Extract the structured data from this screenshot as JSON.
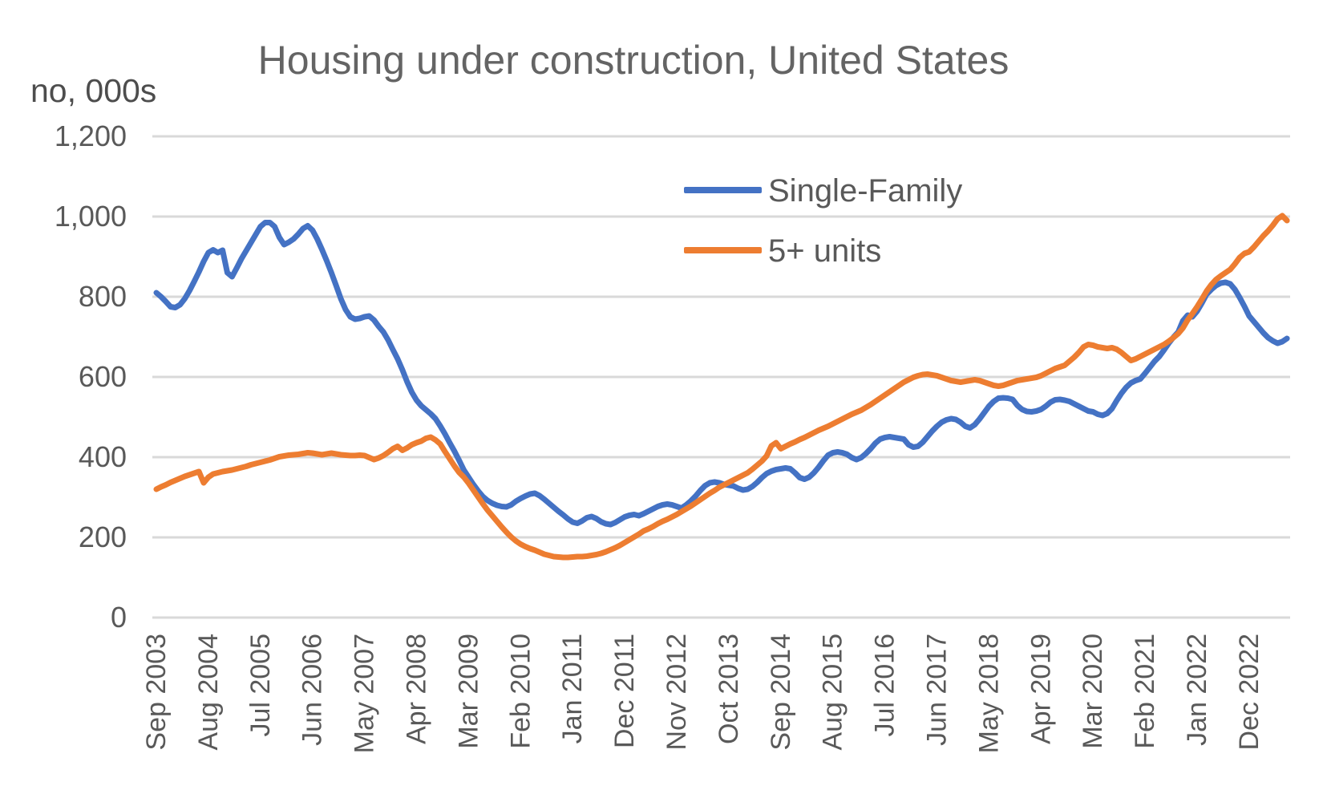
{
  "title": "Housing under construction, United States",
  "unit_label": "no, 000s",
  "colors": {
    "single_family": "#4472C4",
    "five_plus_units": "#ED7D31",
    "gridline": "#D9D9D9",
    "title_text": "#646464",
    "axis_text": "#595959"
  },
  "legend": [
    {
      "label": "Single-Family",
      "color": "#4472C4"
    },
    {
      "label": "5+ units",
      "color": "#ED7D31"
    }
  ],
  "chart_data": {
    "type": "line",
    "title": "Housing under construction, United States",
    "ylabel": "no, 000s",
    "ylim": [
      0,
      1200
    ],
    "grid": "horizontal",
    "legend_position": "inside-top-right",
    "y_ticks": [
      {
        "value": 0,
        "label": "0"
      },
      {
        "value": 200,
        "label": "200"
      },
      {
        "value": 400,
        "label": "400"
      },
      {
        "value": 600,
        "label": "600"
      },
      {
        "value": 800,
        "label": "800"
      },
      {
        "value": 1000,
        "label": "1,000"
      },
      {
        "value": 1200,
        "label": "1,200"
      }
    ],
    "x_tick_labels": [
      "Sep 2003",
      "Aug 2004",
      "Jul 2005",
      "Jun 2006",
      "May 2007",
      "Apr 2008",
      "Mar 2009",
      "Feb 2010",
      "Jan 2011",
      "Dec 2011",
      "Nov 2012",
      "Oct 2013",
      "Sep 2014",
      "Aug 2015",
      "Jul 2016",
      "Jun 2017",
      "May 2018",
      "Apr 2019",
      "Mar 2020",
      "Feb 2021",
      "Jan 2022",
      "Dec 2022"
    ],
    "x_tick_interval_months": 11,
    "x_start_month": "Sep 2003",
    "x_end_month": "Aug 2023",
    "series": [
      {
        "name": "Single-Family",
        "color": "#4472C4",
        "values": [
          810,
          800,
          788,
          775,
          773,
          780,
          795,
          815,
          838,
          862,
          888,
          910,
          917,
          910,
          916,
          860,
          850,
          872,
          895,
          915,
          935,
          955,
          975,
          985,
          985,
          975,
          948,
          930,
          936,
          944,
          956,
          970,
          977,
          966,
          944,
          918,
          890,
          860,
          828,
          795,
          768,
          750,
          744,
          746,
          750,
          752,
          742,
          726,
          712,
          692,
          668,
          645,
          618,
          588,
          562,
          542,
          528,
          518,
          508,
          496,
          478,
          458,
          436,
          415,
          392,
          368,
          350,
          332,
          316,
          302,
          292,
          285,
          280,
          277,
          276,
          281,
          290,
          297,
          303,
          308,
          310,
          304,
          295,
          285,
          275,
          265,
          256,
          246,
          238,
          235,
          241,
          249,
          252,
          247,
          239,
          234,
          232,
          237,
          244,
          251,
          255,
          257,
          254,
          259,
          265,
          271,
          277,
          281,
          283,
          281,
          277,
          273,
          281,
          291,
          303,
          317,
          329,
          336,
          338,
          336,
          332,
          330,
          328,
          322,
          318,
          320,
          327,
          337,
          349,
          359,
          365,
          369,
          371,
          373,
          371,
          361,
          349,
          345,
          350,
          361,
          375,
          391,
          405,
          411,
          413,
          411,
          407,
          399,
          394,
          399,
          409,
          421,
          435,
          445,
          449,
          451,
          449,
          447,
          445,
          431,
          425,
          427,
          437,
          451,
          465,
          477,
          487,
          493,
          496,
          494,
          487,
          477,
          473,
          481,
          495,
          511,
          527,
          539,
          547,
          548,
          547,
          544,
          529,
          519,
          514,
          513,
          515,
          519,
          527,
          537,
          543,
          544,
          542,
          539,
          533,
          527,
          521,
          515,
          513,
          507,
          504,
          509,
          521,
          541,
          559,
          574,
          585,
          591,
          595,
          609,
          624,
          639,
          651,
          667,
          684,
          699,
          712,
          740,
          754,
          750,
          764,
          784,
          806,
          818,
          828,
          834,
          836,
          832,
          818,
          798,
          776,
          752,
          738,
          724,
          710,
          698,
          690,
          684,
          688,
          696
        ]
      },
      {
        "name": "5+ units",
        "color": "#ED7D31",
        "values": [
          320,
          326,
          331,
          337,
          342,
          347,
          352,
          356,
          360,
          364,
          336,
          350,
          358,
          361,
          364,
          366,
          368,
          371,
          374,
          377,
          381,
          384,
          387,
          390,
          393,
          397,
          401,
          403,
          405,
          406,
          407,
          409,
          411,
          410,
          408,
          406,
          408,
          410,
          408,
          406,
          405,
          404,
          404,
          405,
          404,
          399,
          394,
          398,
          404,
          412,
          421,
          427,
          417,
          423,
          431,
          436,
          440,
          447,
          450,
          443,
          433,
          414,
          396,
          378,
          362,
          350,
          335,
          318,
          301,
          284,
          268,
          254,
          240,
          226,
          213,
          201,
          191,
          183,
          177,
          172,
          168,
          163,
          158,
          155,
          152,
          151,
          150,
          150,
          151,
          152,
          152,
          153,
          155,
          157,
          160,
          164,
          169,
          174,
          180,
          187,
          194,
          201,
          208,
          216,
          221,
          227,
          234,
          240,
          245,
          251,
          257,
          264,
          271,
          278,
          286,
          294,
          302,
          310,
          317,
          325,
          331,
          337,
          343,
          349,
          355,
          361,
          370,
          380,
          390,
          403,
          428,
          436,
          421,
          427,
          433,
          438,
          444,
          449,
          455,
          461,
          467,
          472,
          477,
          483,
          489,
          495,
          501,
          507,
          512,
          517,
          524,
          531,
          539,
          547,
          555,
          563,
          571,
          579,
          587,
          593,
          599,
          603,
          606,
          607,
          605,
          603,
          599,
          595,
          591,
          589,
          587,
          589,
          591,
          593,
          591,
          587,
          583,
          579,
          577,
          579,
          583,
          587,
          591,
          593,
          595,
          597,
          599,
          603,
          609,
          615,
          621,
          625,
          629,
          639,
          649,
          661,
          675,
          681,
          679,
          675,
          673,
          671,
          673,
          669,
          661,
          651,
          641,
          645,
          651,
          657,
          663,
          669,
          675,
          681,
          689,
          698,
          708,
          722,
          742,
          758,
          775,
          794,
          814,
          830,
          843,
          852,
          860,
          868,
          882,
          898,
          908,
          912,
          924,
          938,
          952,
          964,
          978,
          994,
          1002,
          990
        ]
      }
    ]
  }
}
